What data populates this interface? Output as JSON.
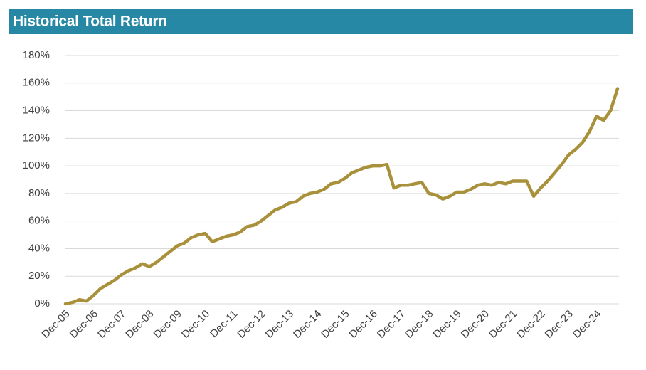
{
  "chart_data": {
    "type": "line",
    "title": "Historical Total Return",
    "categories": [
      "Dec-05",
      null,
      null,
      null,
      "Dec-06",
      null,
      null,
      null,
      "Dec-07",
      null,
      null,
      null,
      "Dec-08",
      null,
      null,
      null,
      "Dec-09",
      null,
      null,
      null,
      "Dec-10",
      null,
      null,
      null,
      "Dec-11",
      null,
      null,
      null,
      "Dec-12",
      null,
      null,
      null,
      "Dec-13",
      null,
      null,
      null,
      "Dec-14",
      null,
      null,
      null,
      "Dec-15",
      null,
      null,
      null,
      "Dec-16",
      null,
      null,
      null,
      "Dec-17",
      null,
      null,
      null,
      "Dec-18",
      null,
      null,
      null,
      "Dec-19",
      null,
      null,
      null,
      "Dec-20",
      null,
      null,
      null,
      "Dec-21",
      null,
      null,
      null,
      "Dec-22",
      null,
      null,
      null,
      "Dec-23",
      null,
      null,
      null,
      "Dec-24",
      null,
      null,
      null
    ],
    "values": [
      0,
      1,
      3,
      2,
      6,
      11,
      14,
      17,
      21,
      24,
      26,
      29,
      27,
      30,
      34,
      38,
      42,
      44,
      48,
      50,
      51,
      45,
      47,
      49,
      50,
      52,
      56,
      57,
      60,
      64,
      68,
      70,
      73,
      74,
      78,
      80,
      81,
      83,
      87,
      88,
      91,
      95,
      97,
      99,
      100,
      100,
      101,
      84,
      86,
      86,
      87,
      88,
      80,
      79,
      76,
      78,
      81,
      81,
      83,
      86,
      87,
      86,
      88,
      87,
      89,
      89,
      89,
      78,
      84,
      89,
      95,
      101,
      108,
      112,
      117,
      125,
      136,
      133,
      140,
      156
    ],
    "color": "#a8913a",
    "ylim": [
      0,
      180
    ],
    "yticks": [
      {
        "value": 0,
        "label": "0%"
      },
      {
        "value": 20,
        "label": "20%"
      },
      {
        "value": 40,
        "label": "40%"
      },
      {
        "value": 60,
        "label": "60%"
      },
      {
        "value": 80,
        "label": "80%"
      },
      {
        "value": 100,
        "label": "100%"
      },
      {
        "value": 120,
        "label": "120%"
      },
      {
        "value": 140,
        "label": "140%"
      },
      {
        "value": 160,
        "label": "160%"
      },
      {
        "value": 180,
        "label": "180%"
      }
    ],
    "grid": true
  }
}
